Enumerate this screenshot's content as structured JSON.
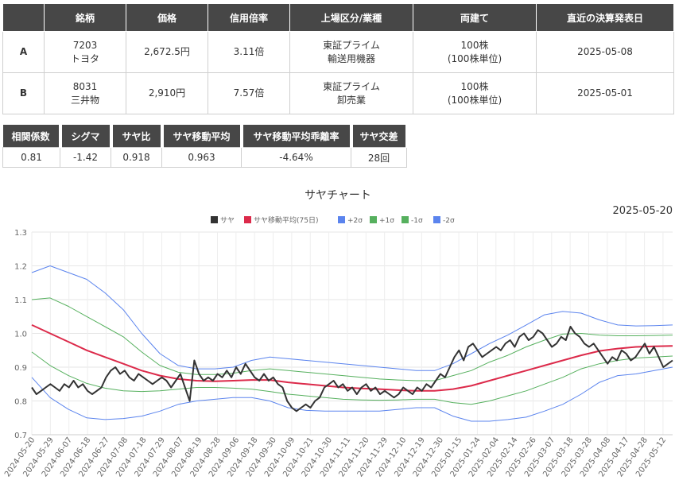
{
  "pair_table": {
    "headers": [
      "",
      "銘柄",
      "価格",
      "信用倍率",
      "上場区分/業種",
      "両建て",
      "直近の決算発表日"
    ],
    "rows": [
      {
        "label": "A",
        "code": "7203",
        "name": "トヨタ",
        "price": "2,672.5円",
        "ratio": "3.11倍",
        "market": "東証プライム",
        "sector": "輸送用機器",
        "hedge": "100株",
        "unit": "(100株単位)",
        "date": "2025-05-08"
      },
      {
        "label": "B",
        "code": "8031",
        "name": "三井物",
        "price": "2,910円",
        "ratio": "7.57倍",
        "market": "東証プライム",
        "sector": "卸売業",
        "hedge": "100株",
        "unit": "(100株単位)",
        "date": "2025-05-01"
      }
    ]
  },
  "stats": {
    "headers": [
      "相関係数",
      "シグマ",
      "サヤ比",
      "サヤ移動平均",
      "サヤ移動平均乖離率",
      "サヤ交差"
    ],
    "values": [
      "0.81",
      "-1.42",
      "0.918",
      "0.963",
      "-4.64%",
      "28回"
    ]
  },
  "chart_data": {
    "type": "line",
    "title": "サヤチャート",
    "date_label": "2025-05-20",
    "ylim": [
      0.7,
      1.3
    ],
    "yticks": [
      "0.7",
      "0.8",
      "0.9",
      "1.0",
      "1.1",
      "1.2",
      "1.3"
    ],
    "xticks": [
      "2024-05-20",
      "2024-05-29",
      "2024-06-07",
      "2024-06-18",
      "2024-06-27",
      "2024-07-08",
      "2024-07-18",
      "2024-07-29",
      "2024-08-07",
      "2024-08-19",
      "2024-08-28",
      "2024-09-06",
      "2024-09-18",
      "2024-09-30",
      "2024-10-09",
      "2024-10-21",
      "2024-10-30",
      "2024-11-11",
      "2024-11-20",
      "2024-11-29",
      "2024-12-10",
      "2024-12-19",
      "2024-12-30",
      "2025-01-15",
      "2025-01-24",
      "2025-02-04",
      "2025-02-14",
      "2025-02-26",
      "2025-03-07",
      "2025-03-18",
      "2025-03-28",
      "2025-04-08",
      "2025-04-17",
      "2025-04-28",
      "2025-05-12"
    ],
    "legend": [
      "サヤ",
      "サヤ移動平均(75日)",
      "+2σ",
      "+1σ",
      "-1σ",
      "-2σ"
    ],
    "series": [
      {
        "name": "サヤ",
        "color": "#333333",
        "width": 2,
        "values": [
          0.84,
          0.82,
          0.83,
          0.84,
          0.85,
          0.84,
          0.83,
          0.85,
          0.84,
          0.86,
          0.84,
          0.85,
          0.83,
          0.82,
          0.83,
          0.84,
          0.87,
          0.89,
          0.9,
          0.88,
          0.89,
          0.87,
          0.86,
          0.88,
          0.87,
          0.86,
          0.85,
          0.86,
          0.87,
          0.86,
          0.84,
          0.86,
          0.88,
          0.84,
          0.8,
          0.92,
          0.88,
          0.86,
          0.87,
          0.86,
          0.88,
          0.87,
          0.89,
          0.87,
          0.9,
          0.88,
          0.91,
          0.89,
          0.87,
          0.86,
          0.88,
          0.86,
          0.87,
          0.85,
          0.84,
          0.8,
          0.78,
          0.77,
          0.78,
          0.79,
          0.78,
          0.8,
          0.81,
          0.84,
          0.85,
          0.86,
          0.84,
          0.85,
          0.83,
          0.84,
          0.82,
          0.84,
          0.85,
          0.83,
          0.84,
          0.82,
          0.83,
          0.82,
          0.81,
          0.82,
          0.84,
          0.83,
          0.82,
          0.84,
          0.83,
          0.85,
          0.84,
          0.86,
          0.88,
          0.87,
          0.9,
          0.93,
          0.95,
          0.92,
          0.96,
          0.97,
          0.95,
          0.93,
          0.94,
          0.95,
          0.96,
          0.95,
          0.97,
          0.98,
          0.96,
          0.99,
          1.0,
          0.98,
          0.99,
          1.01,
          1.0,
          0.98,
          0.96,
          0.97,
          0.99,
          0.98,
          1.02,
          1.0,
          0.99,
          0.97,
          0.96,
          0.97,
          0.95,
          0.93,
          0.91,
          0.93,
          0.92,
          0.95,
          0.94,
          0.92,
          0.93,
          0.95,
          0.97,
          0.94,
          0.96,
          0.93,
          0.9,
          0.91,
          0.92
        ]
      },
      {
        "name": "サヤ移動平均(75日)",
        "color": "#dc2a4a",
        "width": 2,
        "values": [
          1.025,
          1.0,
          0.975,
          0.95,
          0.93,
          0.91,
          0.89,
          0.875,
          0.865,
          0.86,
          0.858,
          0.86,
          0.862,
          0.862,
          0.855,
          0.85,
          0.845,
          0.84,
          0.837,
          0.835,
          0.832,
          0.83,
          0.83,
          0.835,
          0.845,
          0.86,
          0.875,
          0.89,
          0.905,
          0.92,
          0.935,
          0.948,
          0.955,
          0.96,
          0.962,
          0.963
        ]
      },
      {
        "name": "+2σ",
        "color": "#5b84ee",
        "width": 1,
        "values": [
          1.18,
          1.2,
          1.18,
          1.16,
          1.12,
          1.07,
          1.0,
          0.94,
          0.905,
          0.895,
          0.895,
          0.9,
          0.92,
          0.93,
          0.925,
          0.92,
          0.915,
          0.91,
          0.905,
          0.9,
          0.895,
          0.89,
          0.89,
          0.91,
          0.94,
          0.97,
          0.995,
          1.025,
          1.055,
          1.065,
          1.06,
          1.04,
          1.025,
          1.022,
          1.023,
          1.025
        ]
      },
      {
        "name": "+1σ",
        "color": "#56b05e",
        "width": 1,
        "values": [
          1.1,
          1.105,
          1.08,
          1.05,
          1.02,
          0.99,
          0.945,
          0.905,
          0.885,
          0.878,
          0.878,
          0.882,
          0.89,
          0.895,
          0.89,
          0.885,
          0.88,
          0.875,
          0.87,
          0.865,
          0.862,
          0.86,
          0.86,
          0.875,
          0.89,
          0.915,
          0.935,
          0.96,
          0.98,
          0.998,
          1.0,
          0.995,
          0.993,
          0.993,
          0.994,
          0.995
        ]
      },
      {
        "name": "-1σ",
        "color": "#56b05e",
        "width": 1,
        "values": [
          0.945,
          0.905,
          0.875,
          0.852,
          0.838,
          0.83,
          0.828,
          0.83,
          0.835,
          0.84,
          0.84,
          0.838,
          0.835,
          0.828,
          0.82,
          0.815,
          0.81,
          0.805,
          0.803,
          0.802,
          0.803,
          0.805,
          0.805,
          0.795,
          0.79,
          0.8,
          0.815,
          0.83,
          0.85,
          0.87,
          0.895,
          0.91,
          0.92,
          0.927,
          0.93,
          0.933
        ]
      },
      {
        "name": "-2σ",
        "color": "#5b84ee",
        "width": 1,
        "values": [
          0.87,
          0.81,
          0.775,
          0.75,
          0.745,
          0.748,
          0.755,
          0.77,
          0.79,
          0.8,
          0.805,
          0.81,
          0.81,
          0.8,
          0.78,
          0.772,
          0.77,
          0.77,
          0.77,
          0.77,
          0.775,
          0.78,
          0.78,
          0.755,
          0.74,
          0.74,
          0.745,
          0.752,
          0.77,
          0.79,
          0.82,
          0.855,
          0.875,
          0.88,
          0.89,
          0.9
        ]
      }
    ]
  }
}
